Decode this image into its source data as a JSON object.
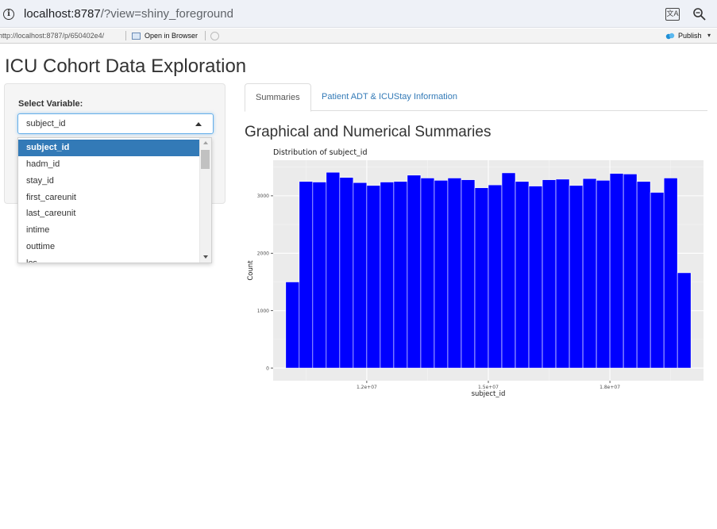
{
  "browser": {
    "host": "localhost:8787",
    "path": "/?view=shiny_foreground"
  },
  "viewer": {
    "url": "http://localhost:8787/p/650402e4/",
    "open_in_browser": "Open in Browser",
    "publish": "Publish"
  },
  "app": {
    "title": "ICU Cohort Data Exploration",
    "select_label": "Select Variable:",
    "select_value": "subject_id",
    "options": [
      "subject_id",
      "hadm_id",
      "stay_id",
      "first_careunit",
      "last_careunit",
      "intime",
      "outtime",
      "los"
    ],
    "tabs": [
      "Summaries",
      "Patient ADT & ICUStay Information"
    ],
    "section_title": "Graphical and Numerical Summaries"
  },
  "colors": {
    "bar_fill": "#0000ff",
    "panel_bg": "#ebebeb",
    "accent": "#337ab7"
  },
  "chart_data": {
    "type": "bar",
    "title": "Distribution of subject_id",
    "xlabel": "subject_id",
    "ylabel": "Count",
    "ylim": [
      -220,
      3620
    ],
    "xlim": [
      9690000,
      20310000
    ],
    "bin_width": 333333,
    "bin_starts": [
      10000000,
      10333333,
      10666667,
      11000000,
      11333333,
      11666667,
      12000000,
      12333333,
      12666667,
      13000000,
      13333333,
      13666667,
      14000000,
      14333333,
      14666667,
      15000000,
      15333333,
      15666667,
      16000000,
      16333333,
      16666667,
      17000000,
      17333333,
      17666667,
      18000000,
      18333333,
      18666667,
      19000000,
      19333333,
      19666667
    ],
    "values": [
      1500,
      3250,
      3240,
      3410,
      3320,
      3230,
      3180,
      3240,
      3250,
      3360,
      3310,
      3270,
      3310,
      3280,
      3140,
      3190,
      3400,
      3250,
      3170,
      3280,
      3290,
      3180,
      3300,
      3270,
      3390,
      3380,
      3250,
      3060,
      3310,
      1660
    ],
    "x_ticks": [
      12000000,
      15000000,
      18000000
    ],
    "x_tick_labels": [
      "1.2e+07",
      "1.5e+07",
      "1.8e+07"
    ],
    "y_ticks": [
      0,
      1000,
      2000,
      3000
    ],
    "y_tick_labels": [
      "0",
      "1000",
      "2000",
      "3000"
    ],
    "grid": true,
    "legend": "none"
  }
}
